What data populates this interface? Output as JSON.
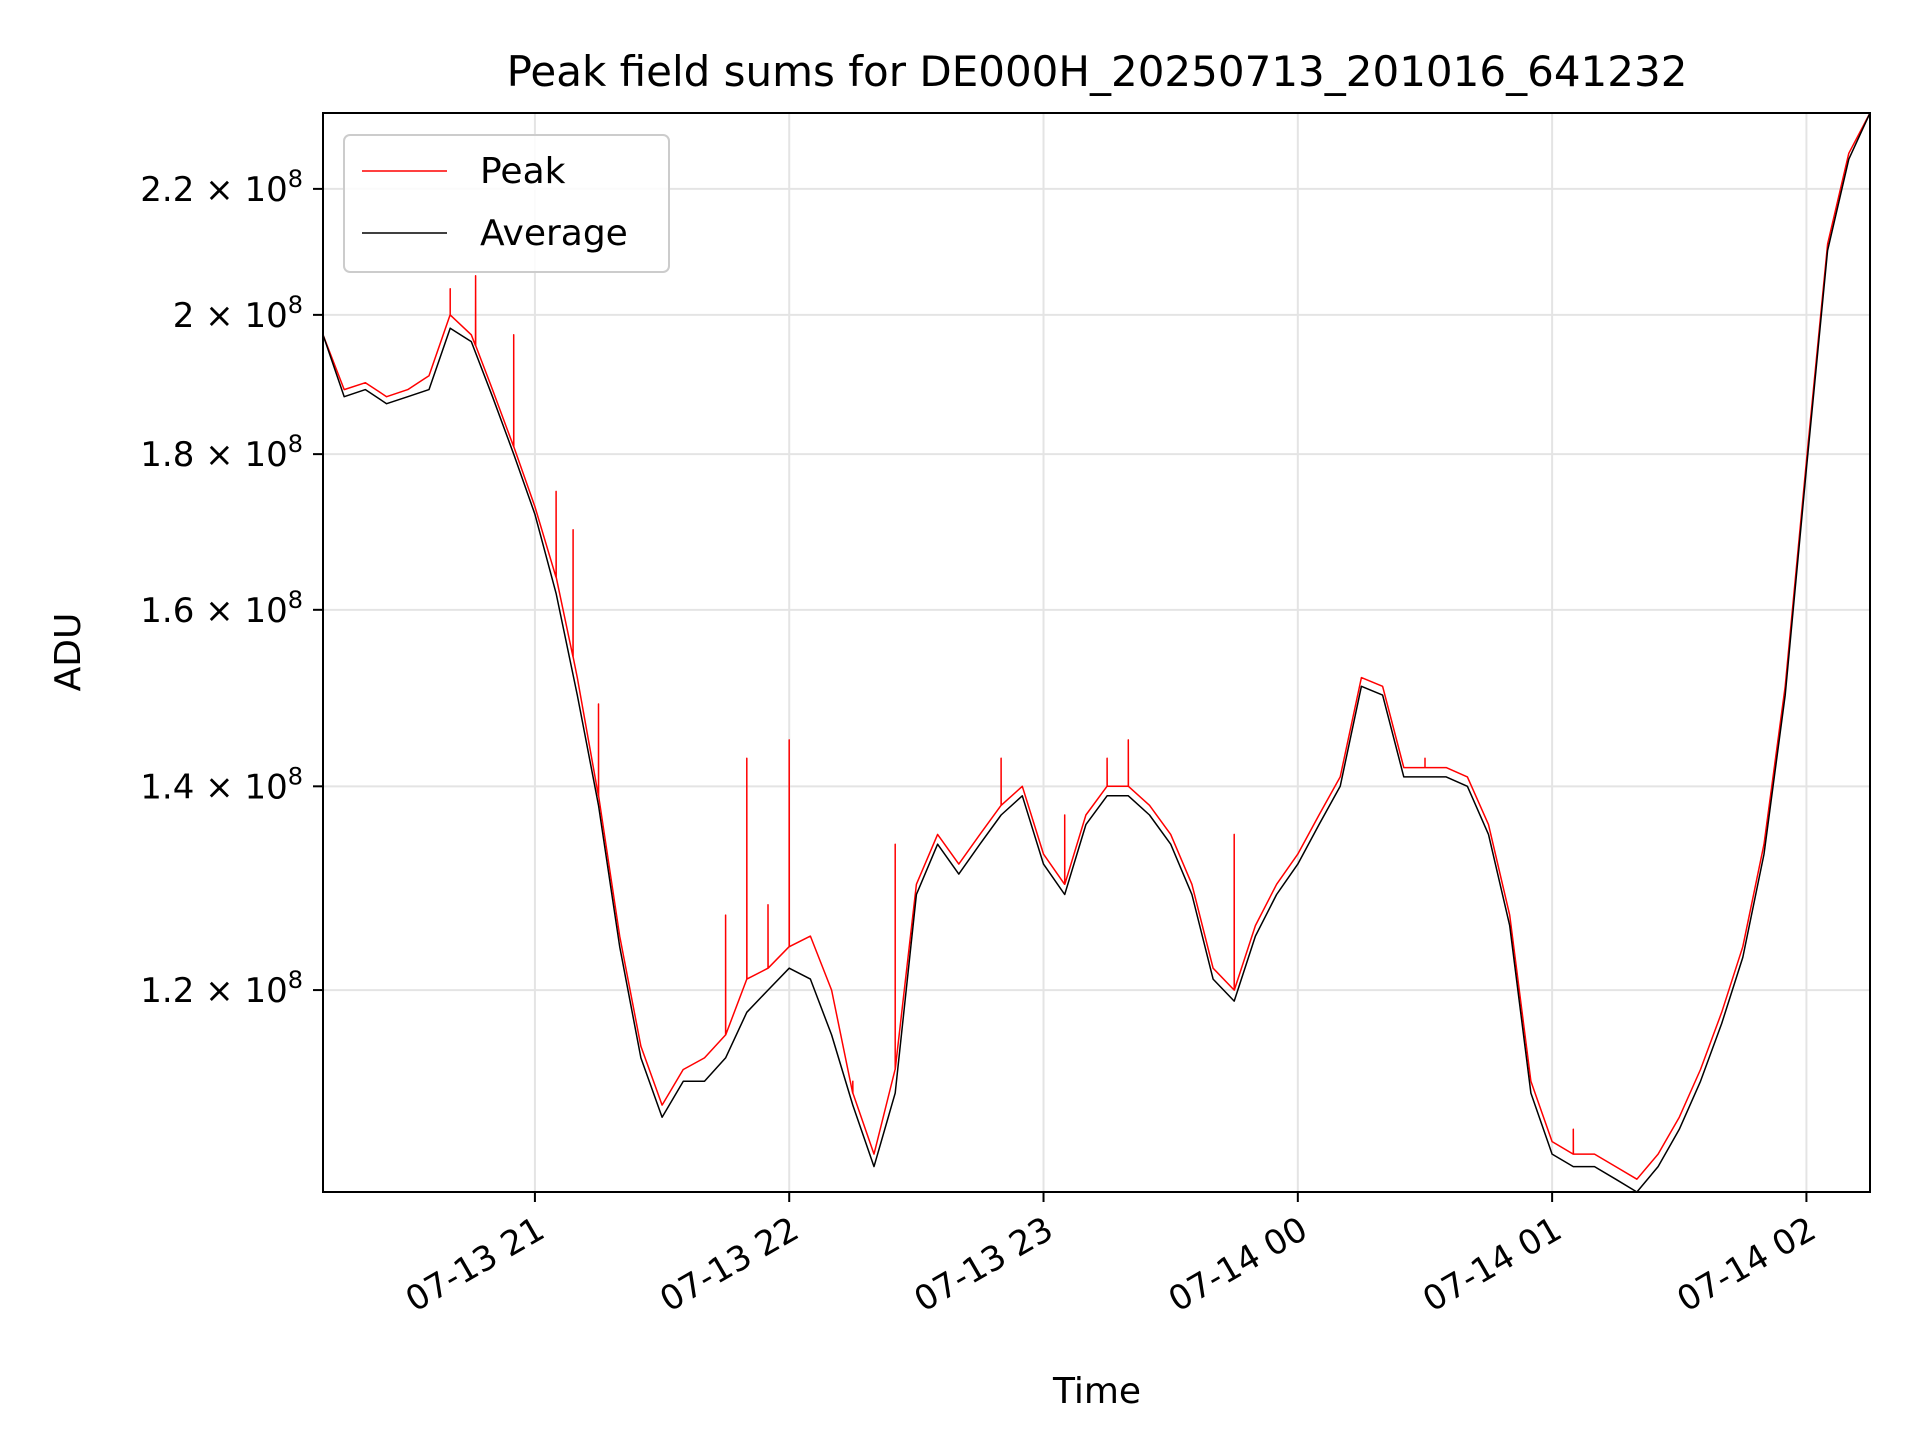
{
  "chart_data": {
    "type": "line",
    "title": "Peak field sums for DE000H_20250713_201016_641232",
    "xlabel": "Time",
    "ylabel": "ADU",
    "y_scale": "log",
    "x_tick_labels": [
      "07-13 21",
      "07-13 22",
      "07-13 23",
      "07-14 00",
      "07-14 01",
      "07-14 02"
    ],
    "x_ticks": [
      "2025-07-13 21:00",
      "2025-07-13 22:00",
      "2025-07-13 23:00",
      "2025-07-14 00:00",
      "2025-07-14 01:00",
      "2025-07-14 02:00"
    ],
    "xlim": [
      "2025-07-13 20:10",
      "2025-07-14 02:15"
    ],
    "y_ticks": [
      120000000.0,
      140000000.0,
      160000000.0,
      180000000.0,
      200000000.0,
      220000000.0
    ],
    "y_tick_mantissas": [
      "1.2",
      "1.4",
      "1.6",
      "1.8",
      "2",
      "2.2"
    ],
    "y_tick_times": "×",
    "y_tick_base": "10",
    "y_tick_exponent": "8",
    "ylim": [
      103000000.0,
      233000000.0
    ],
    "grid": true,
    "legend_position": "upper-left",
    "series": [
      {
        "name": "Average",
        "color": "#000000",
        "x": [
          "20:10",
          "20:15",
          "20:20",
          "20:25",
          "20:30",
          "20:35",
          "20:40",
          "20:45",
          "20:50",
          "20:55",
          "21:00",
          "21:05",
          "21:10",
          "21:15",
          "21:20",
          "21:25",
          "21:30",
          "21:35",
          "21:40",
          "21:45",
          "21:50",
          "21:55",
          "22:00",
          "22:05",
          "22:10",
          "22:15",
          "22:20",
          "22:25",
          "22:30",
          "22:35",
          "22:40",
          "22:45",
          "22:50",
          "22:55",
          "23:00",
          "23:05",
          "23:10",
          "23:15",
          "23:20",
          "23:25",
          "23:30",
          "23:35",
          "23:40",
          "23:45",
          "23:50",
          "23:55",
          "00:00",
          "00:05",
          "00:10",
          "00:15",
          "00:20",
          "00:25",
          "00:30",
          "00:35",
          "00:40",
          "00:45",
          "00:50",
          "00:55",
          "01:00",
          "01:05",
          "01:10",
          "01:15",
          "01:20",
          "01:25",
          "01:30",
          "01:35",
          "01:40",
          "01:45",
          "01:50",
          "01:55",
          "02:00",
          "02:05",
          "02:10",
          "02:15"
        ],
        "y": [
          197000000.0,
          188000000.0,
          189000000.0,
          187000000.0,
          188000000.0,
          189000000.0,
          198000000.0,
          196000000.0,
          188000000.0,
          180000000.0,
          172000000.0,
          162000000.0,
          150000000.0,
          138000000.0,
          124000000.0,
          114000000.0,
          109000000.0,
          112000000.0,
          112000000.0,
          114000000.0,
          118000000.0,
          120000000.0,
          122000000.0,
          121000000.0,
          116000000.0,
          110000000.0,
          105000000.0,
          111000000.0,
          129000000.0,
          134000000.0,
          131000000.0,
          134000000.0,
          137000000.0,
          139000000.0,
          132000000.0,
          129000000.0,
          136000000.0,
          139000000.0,
          139000000.0,
          137000000.0,
          134000000.0,
          129000000.0,
          121000000.0,
          119000000.0,
          125000000.0,
          129000000.0,
          132000000.0,
          136000000.0,
          140000000.0,
          151000000.0,
          150000000.0,
          141000000.0,
          141000000.0,
          141000000.0,
          140000000.0,
          135000000.0,
          126000000.0,
          111000000.0,
          106000000.0,
          105000000.0,
          105000000.0,
          104000000.0,
          103000000.0,
          105000000.0,
          108000000.0,
          112000000.0,
          117000000.0,
          123000000.0,
          133000000.0,
          150000000.0,
          178000000.0,
          210000000.0,
          225000000.0,
          233000000.0
        ]
      },
      {
        "name": "Peak",
        "color": "#ff0000",
        "x": [
          "20:10",
          "20:15",
          "20:20",
          "20:25",
          "20:30",
          "20:35",
          "20:40",
          "20:45",
          "20:50",
          "20:55",
          "21:00",
          "21:05",
          "21:10",
          "21:15",
          "21:20",
          "21:25",
          "21:30",
          "21:35",
          "21:40",
          "21:45",
          "21:50",
          "21:55",
          "22:00",
          "22:05",
          "22:10",
          "22:15",
          "22:20",
          "22:25",
          "22:30",
          "22:35",
          "22:40",
          "22:45",
          "22:50",
          "22:55",
          "23:00",
          "23:05",
          "23:10",
          "23:15",
          "23:20",
          "23:25",
          "23:30",
          "23:35",
          "23:40",
          "23:45",
          "23:50",
          "23:55",
          "00:00",
          "00:05",
          "00:10",
          "00:15",
          "00:20",
          "00:25",
          "00:30",
          "00:35",
          "00:40",
          "00:45",
          "00:50",
          "00:55",
          "01:00",
          "01:05",
          "01:10",
          "01:15",
          "01:20",
          "01:25",
          "01:30",
          "01:35",
          "01:40",
          "01:45",
          "01:50",
          "01:55",
          "02:00",
          "02:05",
          "02:10",
          "02:15"
        ],
        "y": [
          197000000.0,
          189000000.0,
          190000000.0,
          188000000.0,
          189000000.0,
          191000000.0,
          200000000.0,
          197000000.0,
          189000000.0,
          181000000.0,
          173000000.0,
          164000000.0,
          152000000.0,
          139000000.0,
          125000000.0,
          115000000.0,
          110000000.0,
          113000000.0,
          114000000.0,
          116000000.0,
          121000000.0,
          122000000.0,
          124000000.0,
          125000000.0,
          120000000.0,
          111000000.0,
          106000000.0,
          113000000.0,
          130000000.0,
          135000000.0,
          132000000.0,
          135000000.0,
          138000000.0,
          140000000.0,
          133000000.0,
          130000000.0,
          137000000.0,
          140000000.0,
          140000000.0,
          138000000.0,
          135000000.0,
          130000000.0,
          122000000.0,
          120000000.0,
          126000000.0,
          130000000.0,
          133000000.0,
          137000000.0,
          141000000.0,
          152000000.0,
          151000000.0,
          142000000.0,
          142000000.0,
          142000000.0,
          141000000.0,
          136000000.0,
          127000000.0,
          112000000.0,
          107000000.0,
          106000000.0,
          106000000.0,
          105000000.0,
          104000000.0,
          106000000.0,
          109000000.0,
          113000000.0,
          118000000.0,
          124000000.0,
          134000000.0,
          151000000.0,
          179000000.0,
          211000000.0,
          226000000.0,
          233000000.0
        ],
        "spikes": [
          {
            "x": "20:40",
            "y": 204000000.0
          },
          {
            "x": "20:46",
            "y": 206000000.0
          },
          {
            "x": "20:55",
            "y": 197000000.0
          },
          {
            "x": "21:05",
            "y": 175000000.0
          },
          {
            "x": "21:09",
            "y": 170000000.0
          },
          {
            "x": "21:15",
            "y": 149000000.0
          },
          {
            "x": "21:35",
            "y": 113000000.0
          },
          {
            "x": "21:45",
            "y": 127000000.0
          },
          {
            "x": "21:50",
            "y": 143000000.0
          },
          {
            "x": "21:55",
            "y": 128000000.0
          },
          {
            "x": "22:00",
            "y": 145000000.0
          },
          {
            "x": "22:15",
            "y": 112000000.0
          },
          {
            "x": "22:25",
            "y": 134000000.0
          },
          {
            "x": "22:50",
            "y": 143000000.0
          },
          {
            "x": "23:05",
            "y": 137000000.0
          },
          {
            "x": "23:15",
            "y": 143000000.0
          },
          {
            "x": "23:20",
            "y": 145000000.0
          },
          {
            "x": "23:45",
            "y": 135000000.0
          },
          {
            "x": "00:30",
            "y": 143000000.0
          },
          {
            "x": "00:35",
            "y": 142000000.0
          },
          {
            "x": "01:05",
            "y": 108000000.0
          }
        ]
      }
    ]
  }
}
